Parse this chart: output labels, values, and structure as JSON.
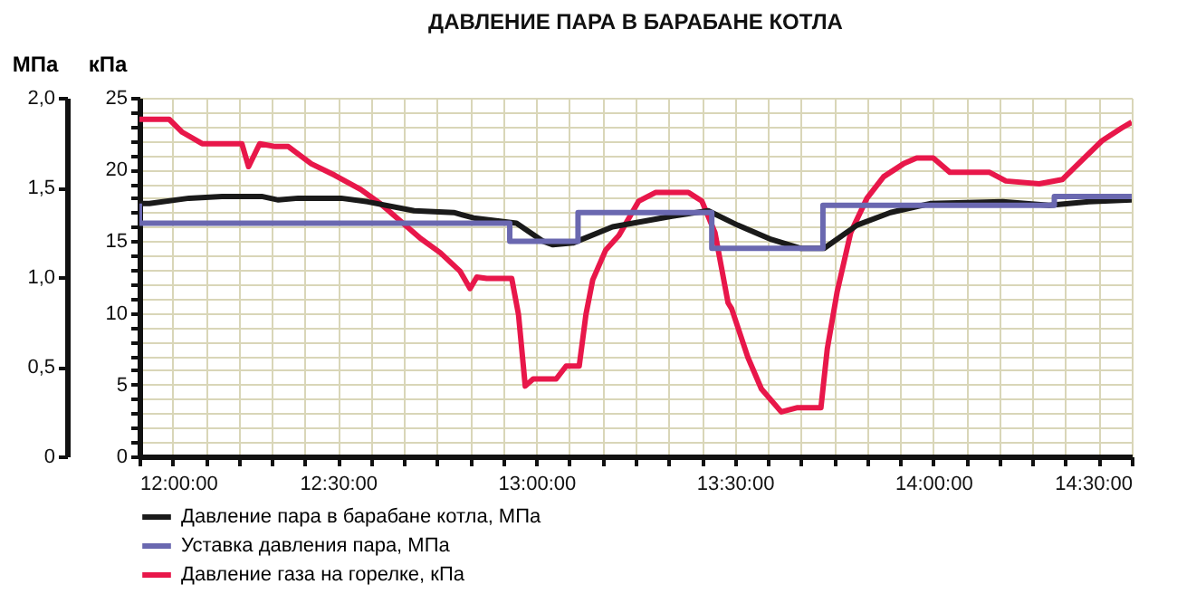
{
  "chart_data": {
    "type": "line",
    "title": "ДАВЛЕНИЕ ПАРА В БАРАБАНЕ КОТЛА",
    "ylabel": "кПа",
    "y2label": "МПа",
    "xlim": [
      12,
      14.5
    ],
    "xticks": [
      {
        "value": 12,
        "label": "12:00:00"
      },
      {
        "value": 12.083,
        "label": null
      },
      {
        "value": 12.167,
        "label": null
      },
      {
        "value": 12.25,
        "label": null
      },
      {
        "value": 12.333,
        "label": null
      },
      {
        "value": 12.417,
        "label": null
      },
      {
        "value": 12.5,
        "label": "12:30:00"
      },
      {
        "value": 12.583,
        "label": null
      },
      {
        "value": 12.667,
        "label": null
      },
      {
        "value": 12.75,
        "label": null
      },
      {
        "value": 12.833,
        "label": null
      },
      {
        "value": 12.917,
        "label": null
      },
      {
        "value": 13,
        "label": "13:00:00"
      },
      {
        "value": 13.083,
        "label": null
      },
      {
        "value": 13.167,
        "label": null
      },
      {
        "value": 13.25,
        "label": null
      },
      {
        "value": 13.333,
        "label": null
      },
      {
        "value": 13.417,
        "label": null
      },
      {
        "value": 13.5,
        "label": "13:30:00"
      },
      {
        "value": 13.583,
        "label": null
      },
      {
        "value": 13.667,
        "label": null
      },
      {
        "value": 13.75,
        "label": null
      },
      {
        "value": 13.833,
        "label": null
      },
      {
        "value": 13.917,
        "label": null
      },
      {
        "value": 14,
        "label": "14:00:00"
      },
      {
        "value": 14.083,
        "label": null
      },
      {
        "value": 14.167,
        "label": null
      },
      {
        "value": 14.25,
        "label": null
      },
      {
        "value": 14.333,
        "label": null
      },
      {
        "value": 14.417,
        "label": null
      },
      {
        "value": 14.5,
        "label": "14:30:00"
      }
    ],
    "ylim": [
      0,
      25
    ],
    "yticks": [
      0,
      {
        "value": 1,
        "label": null
      },
      {
        "value": 2,
        "label": null
      },
      {
        "value": 3,
        "label": null
      },
      {
        "value": 4,
        "label": null
      },
      5,
      {
        "value": 6,
        "label": null
      },
      {
        "value": 7,
        "label": null
      },
      {
        "value": 8,
        "label": null
      },
      {
        "value": 9,
        "label": null
      },
      10,
      {
        "value": 11,
        "label": null
      },
      {
        "value": 12,
        "label": null
      },
      {
        "value": 13,
        "label": null
      },
      {
        "value": 14,
        "label": null
      },
      15,
      {
        "value": 16,
        "label": null
      },
      {
        "value": 17,
        "label": null
      },
      {
        "value": 18,
        "label": null
      },
      {
        "value": 19,
        "label": null
      },
      20,
      {
        "value": 21,
        "label": null
      },
      {
        "value": 22,
        "label": null
      },
      {
        "value": 23,
        "label": null
      },
      {
        "value": 24,
        "label": null
      },
      25
    ],
    "y2lim": [
      0,
      2
    ],
    "y2ticks": [
      0,
      {
        "value": 0.5,
        "label": "0,5"
      },
      {
        "value": 1,
        "label": "1,0"
      },
      {
        "value": 1.5,
        "label": "1,5"
      },
      {
        "value": 2,
        "label": "2,0"
      }
    ],
    "grid": true,
    "legend": "bottom",
    "series": [
      {
        "name": "Давление пара в барабане котла, МПа",
        "color": "#1a1a1a",
        "axis": "y2",
        "x": [
          12,
          12.025,
          12.125,
          12.208,
          12.308,
          12.35,
          12.4,
          12.508,
          12.575,
          12.692,
          12.792,
          12.842,
          12.95,
          13.017,
          13.042,
          13.092,
          13.192,
          13.342,
          13.433,
          13.507,
          13.592,
          13.667,
          13.725,
          13.808,
          13.892,
          13.992,
          14.175,
          14.292,
          14.392,
          14.5
        ],
        "values": [
          1.41,
          1.41,
          1.44,
          1.45,
          1.45,
          1.43,
          1.44,
          1.44,
          1.42,
          1.37,
          1.36,
          1.33,
          1.3,
          1.2,
          1.18,
          1.19,
          1.28,
          1.34,
          1.37,
          1.29,
          1.21,
          1.16,
          1.16,
          1.29,
          1.36,
          1.41,
          1.42,
          1.4,
          1.42,
          1.43
        ]
      },
      {
        "name": "Уставка давления пара, МПа",
        "color": "#6a68b0",
        "axis": "y2",
        "type": "step",
        "x": [
          12,
          12,
          12.933,
          13.105,
          13.442,
          13.722,
          14.305,
          14.5
        ],
        "values": [
          1.41,
          1.3,
          1.2,
          1.36,
          1.16,
          1.4,
          1.45,
          1.45
        ]
      },
      {
        "name": "Давление газа на горелке, кПа",
        "color": "#e8174a",
        "x": [
          12,
          12.075,
          12.108,
          12.158,
          12.258,
          12.275,
          12.303,
          12.342,
          12.375,
          12.433,
          12.492,
          12.558,
          12.608,
          12.658,
          12.708,
          12.758,
          12.808,
          12.833,
          12.85,
          12.875,
          12.938,
          12.955,
          12.972,
          12.992,
          13.05,
          13.075,
          13.108,
          13.125,
          13.142,
          13.175,
          13.208,
          13.258,
          13.3,
          13.383,
          13.417,
          13.45,
          13.483,
          13.492,
          13.533,
          13.567,
          13.617,
          13.658,
          13.717,
          13.733,
          13.758,
          13.792,
          13.833,
          13.875,
          13.925,
          13.958,
          14.0,
          14.042,
          14.142,
          14.183,
          14.267,
          14.325,
          14.358,
          14.425,
          14.475,
          14.5
        ],
        "values": [
          23.5,
          23.5,
          22.6,
          21.8,
          21.8,
          20.2,
          21.8,
          21.6,
          21.6,
          20.4,
          19.6,
          18.6,
          17.6,
          16.4,
          15.2,
          14.2,
          12.9,
          11.7,
          12.5,
          12.4,
          12.4,
          9.9,
          4.9,
          5.4,
          5.4,
          6.3,
          6.3,
          9.9,
          12.3,
          14.4,
          15.4,
          17.8,
          18.4,
          18.4,
          17.8,
          15.6,
          10.7,
          10.3,
          6.9,
          4.7,
          3.1,
          3.4,
          3.4,
          7.5,
          11.5,
          15.6,
          18.0,
          19.5,
          20.4,
          20.8,
          20.8,
          19.8,
          19.8,
          19.2,
          19.0,
          19.3,
          20.2,
          22.0,
          22.9,
          23.3
        ]
      }
    ]
  }
}
